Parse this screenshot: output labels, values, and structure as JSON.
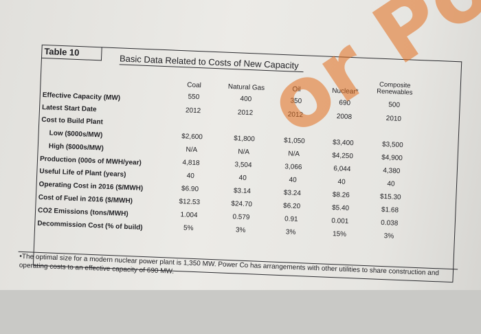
{
  "table": {
    "label": "Table 10",
    "title": "Basic Data Related to Costs of New Capacity",
    "columns": [
      "Coal",
      "Natural Gas",
      "Oil",
      "Nuclear*",
      "Composite Renewables"
    ],
    "rows": [
      {
        "label": "Effective Capacity (MW)",
        "values": [
          "550",
          "400",
          "350",
          "690",
          "500"
        ]
      },
      {
        "label": "Latest Start Date",
        "values": [
          "2012",
          "2012",
          "2012",
          "2008",
          "2010"
        ]
      },
      {
        "label": "Cost to Build Plant",
        "values": [
          "",
          "",
          "",
          "",
          ""
        ]
      },
      {
        "label": "Low ($000s/MW)",
        "values": [
          "$2,600",
          "$1,800",
          "$1,050",
          "$3,400",
          "$3,500"
        ]
      },
      {
        "label": "High ($000s/MW)",
        "values": [
          "N/A",
          "N/A",
          "N/A",
          "$4,250",
          "$4,900"
        ]
      },
      {
        "label": "Production (000s of MWH/year)",
        "values": [
          "4,818",
          "3,504",
          "3,066",
          "6,044",
          "4,380"
        ]
      },
      {
        "label": "Useful Life of Plant (years)",
        "values": [
          "40",
          "40",
          "40",
          "40",
          "40"
        ]
      },
      {
        "label": "Operating Cost in 2016 ($/MWH)",
        "values": [
          "$6.90",
          "$3.14",
          "$3.24",
          "$8.26",
          "$15.30"
        ]
      },
      {
        "label": "Cost of Fuel in 2016 ($/MWH)",
        "values": [
          "$12.53",
          "$24.70",
          "$6.20",
          "$5.40",
          "$1.68"
        ]
      },
      {
        "label": "CO2 Emissions (tons/MWH)",
        "values": [
          "1.004",
          "0.579",
          "0.91",
          "0.001",
          "0.038"
        ]
      },
      {
        "label": "Decommission Cost (% of build)",
        "values": [
          "5%",
          "3%",
          "3%",
          "15%",
          "3%"
        ]
      }
    ],
    "footnote": "The optimal size for a modern nuclear power plant is 1,350 MW. Power Co has arrangements with other utilities to share construction and operating costs to an effective capacity of 690 MW."
  },
  "watermark": "or Post"
}
